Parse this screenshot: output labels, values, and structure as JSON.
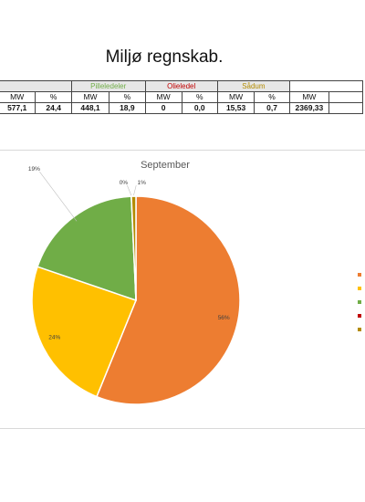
{
  "page": {
    "title": "Miljø regnskab."
  },
  "table": {
    "groups": [
      {
        "label": "",
        "color": "#c9b000"
      },
      {
        "label": "Pilleledeler",
        "color": "#70ad47"
      },
      {
        "label": "Olieledel",
        "color": "#c00000"
      },
      {
        "label": "Sådum",
        "color": "#b28b00"
      }
    ],
    "subheaders": [
      "MW",
      "%",
      "MW",
      "%",
      "MW",
      "%",
      "MW",
      "%",
      "MW"
    ],
    "values": [
      "577,1",
      "24,4",
      "448,1",
      "18,9",
      "0",
      "0,0",
      "15,53",
      "0,7",
      "2369,33"
    ]
  },
  "chart_data": {
    "type": "pie",
    "title": "September",
    "slices": [
      {
        "label": "56%",
        "value": 56,
        "color": "#ed7d31"
      },
      {
        "label": "24%",
        "value": 24,
        "color": "#ffc000"
      },
      {
        "label": "19%",
        "value": 19,
        "color": "#70ad47"
      },
      {
        "label": "0%",
        "value": 0.01,
        "color": "#c00000"
      },
      {
        "label": "1%",
        "value": 0.7,
        "color": "#b28b00"
      }
    ],
    "legend_position": "right",
    "legend_colors": [
      "#ed7d31",
      "#ffc000",
      "#70ad47",
      "#c00000",
      "#b28b00"
    ]
  }
}
